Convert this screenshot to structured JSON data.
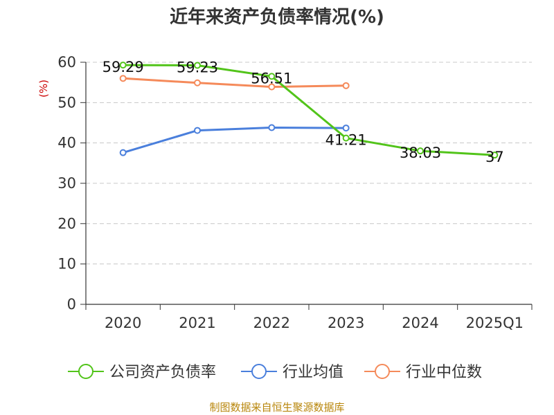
{
  "chart_data": {
    "type": "line",
    "title": "近年来资产负债率情况(%)",
    "ylabel": "(%)",
    "categories": [
      "2020",
      "2021",
      "2022",
      "2023",
      "2024",
      "2025Q1"
    ],
    "ylim": [
      0,
      60
    ],
    "yticks": [
      "0",
      "10",
      "20",
      "30",
      "40",
      "50",
      "60"
    ],
    "grid": true,
    "legend_position": "bottom",
    "series": [
      {
        "name": "公司资产负债率",
        "color": "#52c41a",
        "values": [
          59.29,
          59.23,
          56.51,
          41.21,
          38.03,
          37
        ],
        "labels": [
          "59.29",
          "59.23",
          "56.51",
          "41.21",
          "38.03",
          "37"
        ]
      },
      {
        "name": "行业均值",
        "color": "#4a7fdc",
        "values": [
          37.6,
          43.1,
          43.8,
          43.7,
          null,
          null
        ]
      },
      {
        "name": "行业中位数",
        "color": "#f58a5a",
        "values": [
          56.0,
          54.9,
          53.9,
          54.2,
          null,
          null
        ]
      }
    ]
  },
  "source_text": "制图数据来自恒生聚源数据库"
}
